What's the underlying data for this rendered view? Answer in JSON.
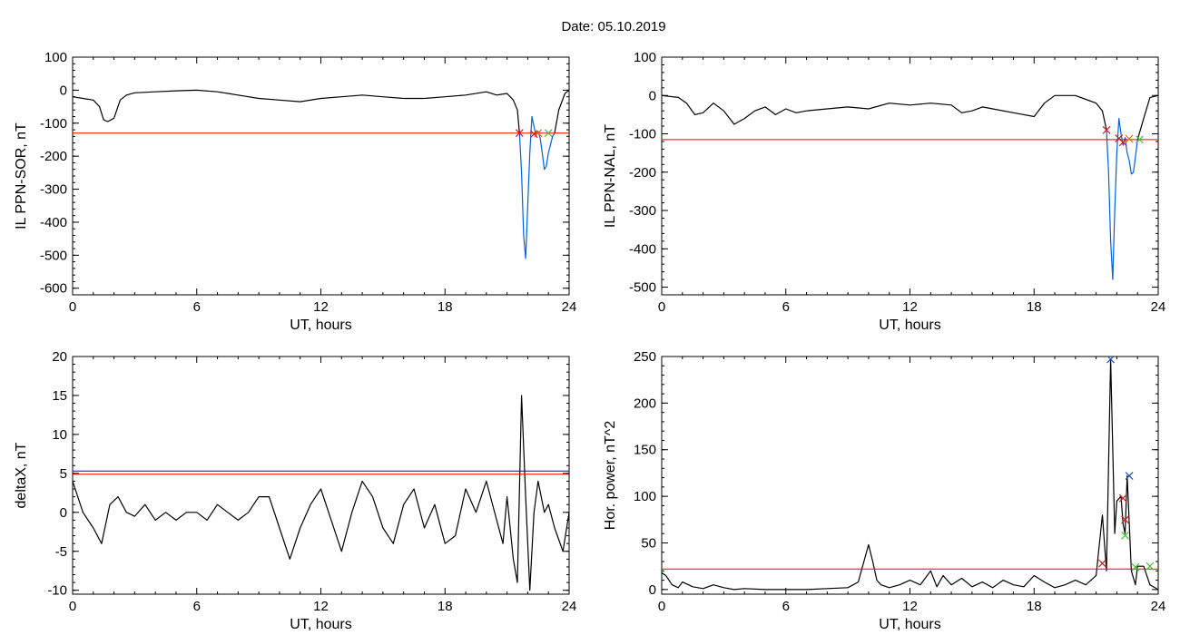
{
  "figure": {
    "title": "Date:  05.10.2019"
  },
  "chart_data": [
    {
      "type": "line",
      "panel": "top-left",
      "xlabel": "UT, hours",
      "ylabel": "IL PPN-SOR, nT",
      "xlim": [
        0,
        24
      ],
      "ylim": [
        -620,
        100
      ],
      "xticks": [
        0,
        6,
        12,
        18,
        24
      ],
      "yticks": [
        100,
        0,
        -100,
        -200,
        -300,
        -400,
        -500,
        -600
      ],
      "hline": {
        "y": -130,
        "color": "#ff0000"
      },
      "series": [
        {
          "color": "#000000",
          "x": [
            0,
            0.5,
            1.0,
            1.3,
            1.5,
            1.7,
            2.0,
            2.3,
            2.6,
            3.0,
            4.0,
            5.0,
            6.0,
            7.0,
            8.0,
            9.0,
            10.0,
            11.0,
            12.0,
            13.0,
            14.0,
            15.0,
            16.0,
            17.0,
            18.0,
            19.0,
            20.0,
            20.5,
            21.0,
            21.3,
            21.5,
            21.6
          ],
          "y": [
            -20,
            -25,
            -30,
            -50,
            -90,
            -95,
            -85,
            -30,
            -15,
            -8,
            -5,
            -2,
            0,
            -5,
            -15,
            -25,
            -30,
            -35,
            -25,
            -20,
            -15,
            -20,
            -25,
            -25,
            -20,
            -15,
            -5,
            -15,
            -10,
            -30,
            -60,
            -130
          ]
        },
        {
          "color": "#0060e0",
          "x": [
            21.6,
            21.7,
            21.8,
            21.9,
            22.0,
            22.1,
            22.2,
            22.3,
            22.4,
            22.5,
            22.6,
            22.7,
            22.8,
            22.9,
            23.0,
            23.2,
            23.3
          ],
          "y": [
            -130,
            -250,
            -440,
            -510,
            -350,
            -190,
            -80,
            -110,
            -140,
            -125,
            -145,
            -190,
            -240,
            -230,
            -190,
            -140,
            -130
          ]
        },
        {
          "color": "#000000",
          "x": [
            23.3,
            23.5,
            23.8,
            24.0
          ],
          "y": [
            -130,
            -60,
            -10,
            0
          ]
        }
      ],
      "markers": [
        {
          "x": 21.6,
          "y": -130,
          "color": "#d02020"
        },
        {
          "x": 22.3,
          "y": -133,
          "color": "#d02020"
        },
        {
          "x": 22.5,
          "y": -130,
          "color": "#e07000"
        },
        {
          "x": 23.0,
          "y": -130,
          "color": "#40c040"
        }
      ]
    },
    {
      "type": "line",
      "panel": "top-right",
      "xlabel": "UT, hours",
      "ylabel": "IL PPN-NAL, nT",
      "xlim": [
        0,
        24
      ],
      "ylim": [
        -520,
        100
      ],
      "xticks": [
        0,
        6,
        12,
        18,
        24
      ],
      "yticks": [
        100,
        0,
        -100,
        -200,
        -300,
        -400,
        -500
      ],
      "hline": {
        "y": -115,
        "color": "#ff0000"
      },
      "series": [
        {
          "color": "#000000",
          "x": [
            0,
            0.8,
            1.2,
            1.6,
            2.0,
            2.5,
            3.0,
            3.5,
            4.0,
            4.5,
            5.0,
            5.5,
            6.0,
            6.5,
            7.0,
            8.0,
            9.0,
            10.0,
            11.0,
            12.0,
            13.0,
            14.0,
            14.5,
            15.0,
            15.5,
            16.0,
            17.0,
            18.0,
            18.5,
            19.0,
            20.0,
            20.5,
            21.0,
            21.3,
            21.5
          ],
          "y": [
            0,
            -5,
            -20,
            -50,
            -45,
            -20,
            -40,
            -75,
            -60,
            -40,
            -30,
            -50,
            -35,
            -45,
            -40,
            -35,
            -30,
            -35,
            -20,
            -25,
            -20,
            -25,
            -45,
            -40,
            -30,
            -35,
            -45,
            -55,
            -20,
            0,
            0,
            -10,
            -20,
            -40,
            -90
          ]
        },
        {
          "color": "#0060e0",
          "x": [
            21.5,
            21.6,
            21.7,
            21.8,
            21.9,
            22.0,
            22.1,
            22.2,
            22.3,
            22.4,
            22.5,
            22.6,
            22.7,
            22.8,
            22.9,
            23.0
          ],
          "y": [
            -90,
            -200,
            -380,
            -480,
            -300,
            -150,
            -60,
            -100,
            -130,
            -110,
            -150,
            -170,
            -205,
            -200,
            -160,
            -115
          ]
        },
        {
          "color": "#000000",
          "x": [
            23.0,
            23.3,
            23.6,
            24.0
          ],
          "y": [
            -115,
            -60,
            -5,
            0
          ]
        }
      ],
      "markers": [
        {
          "x": 21.5,
          "y": -90,
          "color": "#d02020"
        },
        {
          "x": 22.1,
          "y": -112,
          "color": "#d02020"
        },
        {
          "x": 22.3,
          "y": -122,
          "color": "#d02020"
        },
        {
          "x": 22.6,
          "y": -113,
          "color": "#e07000"
        },
        {
          "x": 23.1,
          "y": -115,
          "color": "#40c040"
        }
      ]
    },
    {
      "type": "line",
      "panel": "bottom-left",
      "xlabel": "UT, hours",
      "ylabel": "deltaX, nT",
      "xlim": [
        0,
        24
      ],
      "ylim": [
        -10.5,
        20
      ],
      "xticks": [
        0,
        6,
        12,
        18,
        24
      ],
      "yticks": [
        20,
        15,
        10,
        5,
        0,
        -5,
        -10
      ],
      "hlines": [
        {
          "y": 5.3,
          "color": "#0000ff"
        },
        {
          "y": 4.9,
          "color": "#ff0000"
        }
      ],
      "series": [
        {
          "color": "#000000",
          "x": [
            0,
            0.5,
            1.0,
            1.4,
            1.8,
            2.2,
            2.6,
            3.0,
            3.5,
            4.0,
            4.5,
            5.0,
            5.5,
            6.0,
            6.5,
            7.0,
            7.5,
            8.0,
            8.5,
            9.0,
            9.5,
            10.0,
            10.5,
            11.0,
            11.5,
            12.0,
            12.5,
            13.0,
            13.5,
            14.0,
            14.5,
            15.0,
            15.5,
            16.0,
            16.5,
            17.0,
            17.5,
            18.0,
            18.5,
            19.0,
            19.5,
            20.0,
            20.5,
            20.8,
            21.0,
            21.3,
            21.5,
            21.7,
            21.9,
            22.1,
            22.3,
            22.5,
            22.8,
            23.0,
            23.3,
            23.7,
            24.0
          ],
          "y": [
            4,
            0,
            -2,
            -4,
            1,
            2,
            0,
            -0.5,
            1,
            -1,
            0,
            -1,
            0,
            0,
            -1,
            1,
            0,
            -1,
            0,
            2,
            2,
            -2,
            -6,
            -2,
            1,
            3,
            -1,
            -5,
            0,
            4,
            2,
            -2,
            -4,
            1,
            3,
            -2,
            1,
            -4,
            -3,
            3,
            0,
            4,
            -1,
            -4,
            2,
            -6,
            -9,
            15,
            2,
            -10,
            0,
            4,
            0,
            1,
            -2,
            -5,
            0
          ]
        }
      ]
    },
    {
      "type": "line",
      "panel": "bottom-right",
      "xlabel": "UT, hours",
      "ylabel": "Hor. power, nT^2",
      "xlim": [
        0,
        24
      ],
      "ylim": [
        -5,
        250
      ],
      "xticks": [
        0,
        6,
        12,
        18,
        24
      ],
      "yticks": [
        250,
        200,
        150,
        100,
        50,
        0
      ],
      "hline": {
        "y": 22,
        "color": "#ff0000"
      },
      "series": [
        {
          "color": "#000000",
          "x": [
            0,
            0.2,
            0.5,
            0.8,
            1.0,
            1.5,
            2.0,
            2.5,
            3.0,
            3.5,
            4.0,
            5.0,
            6.0,
            7.0,
            8.0,
            9.0,
            9.5,
            10.0,
            10.2,
            10.4,
            10.6,
            11.0,
            11.5,
            12.0,
            12.5,
            13.0,
            13.3,
            13.6,
            14.0,
            14.5,
            15.0,
            15.5,
            16.0,
            16.5,
            17.0,
            17.5,
            18.0,
            18.5,
            19.0,
            19.5,
            20.0,
            20.5,
            21.0,
            21.3,
            21.5,
            21.7,
            21.9,
            22.0,
            22.2,
            22.3,
            22.4,
            22.5,
            22.7,
            22.9,
            23.0,
            23.3,
            23.6,
            24.0
          ],
          "y": [
            18,
            15,
            5,
            2,
            8,
            3,
            1,
            5,
            2,
            0,
            1,
            0,
            0,
            0,
            1,
            2,
            8,
            48,
            30,
            10,
            5,
            2,
            5,
            10,
            5,
            20,
            3,
            15,
            5,
            12,
            3,
            8,
            2,
            10,
            5,
            3,
            15,
            8,
            2,
            5,
            10,
            5,
            15,
            80,
            20,
            247,
            60,
            95,
            100,
            70,
            60,
            122,
            20,
            5,
            25,
            25,
            5,
            0
          ]
        }
      ],
      "markers": [
        {
          "x": 21.7,
          "y": 247,
          "color": "#2050c0"
        },
        {
          "x": 22.6,
          "y": 122,
          "color": "#2050c0"
        },
        {
          "x": 22.3,
          "y": 98,
          "color": "#d02020"
        },
        {
          "x": 22.4,
          "y": 75,
          "color": "#d02020"
        },
        {
          "x": 21.3,
          "y": 28,
          "color": "#d02020"
        },
        {
          "x": 22.4,
          "y": 58,
          "color": "#40c040"
        },
        {
          "x": 22.9,
          "y": 24,
          "color": "#40c040"
        },
        {
          "x": 23.6,
          "y": 25,
          "color": "#40c040"
        }
      ]
    }
  ]
}
